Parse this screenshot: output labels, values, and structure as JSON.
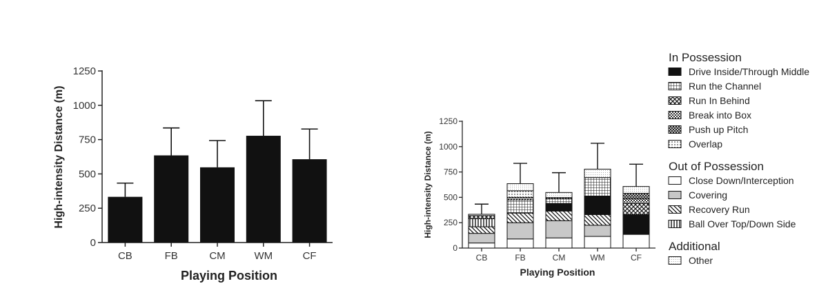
{
  "chart_data": [
    {
      "type": "bar",
      "categories": [
        "CB",
        "FB",
        "CM",
        "WM",
        "CF"
      ],
      "values": [
        333,
        635,
        548,
        778,
        607
      ],
      "error": [
        100,
        200,
        195,
        255,
        220
      ],
      "xlabel": "Playing Position",
      "ylabel": "High-intensity Distance (m)",
      "ylim": [
        0,
        1250
      ],
      "yticks": [
        "0",
        "250",
        "500",
        "750",
        "1000",
        "1250"
      ],
      "bar_color": "#111111",
      "grid": false
    },
    {
      "type": "bar",
      "stacked": true,
      "categories": [
        "CB",
        "FB",
        "CM",
        "WM",
        "CF"
      ],
      "totals": [
        333,
        635,
        548,
        778,
        607
      ],
      "error": [
        100,
        200,
        195,
        255,
        220
      ],
      "xlabel": "Playing Position",
      "ylabel": "High-intensity Distance (m)",
      "ylim": [
        0,
        1250
      ],
      "yticks": [
        "0",
        "250",
        "500",
        "750",
        "1000",
        "1250"
      ],
      "grid": false,
      "legend_position": "right",
      "series": [
        {
          "name": "Close Down/Interception",
          "group": "Out of Possession",
          "pattern": "white",
          "values": [
            50,
            90,
            100,
            115,
            135
          ]
        },
        {
          "name": "Covering",
          "group": "Out of Possession",
          "pattern": "gray",
          "values": [
            95,
            160,
            170,
            110,
            0
          ]
        },
        {
          "name": "Recovery Run",
          "group": "Out of Possession",
          "pattern": "diag",
          "values": [
            65,
            95,
            95,
            105,
            0
          ]
        },
        {
          "name": "Ball Over Top/Down Side",
          "group": "Out of Possession",
          "pattern": "vert",
          "values": [
            80,
            0,
            0,
            0,
            0
          ]
        },
        {
          "name": "Drive Inside/Through Middle",
          "group": "In Possession",
          "pattern": "black",
          "values": [
            0,
            0,
            75,
            180,
            195
          ]
        },
        {
          "name": "Run the Channel",
          "group": "In Possession",
          "pattern": "grid",
          "values": [
            0,
            130,
            45,
            185,
            0
          ]
        },
        {
          "name": "Run In Behind",
          "group": "In Possession",
          "pattern": "xhatch",
          "values": [
            30,
            0,
            0,
            0,
            110
          ]
        },
        {
          "name": "Break into Box",
          "group": "In Possession",
          "pattern": "checker",
          "values": [
            0,
            25,
            0,
            0,
            45
          ]
        },
        {
          "name": "Push up Pitch",
          "group": "In Possession",
          "pattern": "xsmall",
          "values": [
            0,
            0,
            13,
            0,
            55
          ]
        },
        {
          "name": "Overlap",
          "group": "In Possession",
          "pattern": "dots",
          "values": [
            0,
            65,
            0,
            0,
            0
          ]
        },
        {
          "name": "Other",
          "group": "Additional",
          "pattern": "fine",
          "values": [
            13,
            70,
            50,
            83,
            67
          ]
        }
      ],
      "legend": [
        {
          "heading": "In Possession",
          "items": [
            "Drive Inside/Through Middle",
            "Run the Channel",
            "Run In Behind",
            "Break into Box",
            "Push up Pitch",
            "Overlap"
          ]
        },
        {
          "heading": "Out of Possession",
          "items": [
            "Close Down/Interception",
            "Covering",
            "Recovery Run",
            "Ball Over Top/Down Side"
          ]
        },
        {
          "heading": "Additional",
          "items": [
            "Other"
          ]
        }
      ]
    }
  ]
}
